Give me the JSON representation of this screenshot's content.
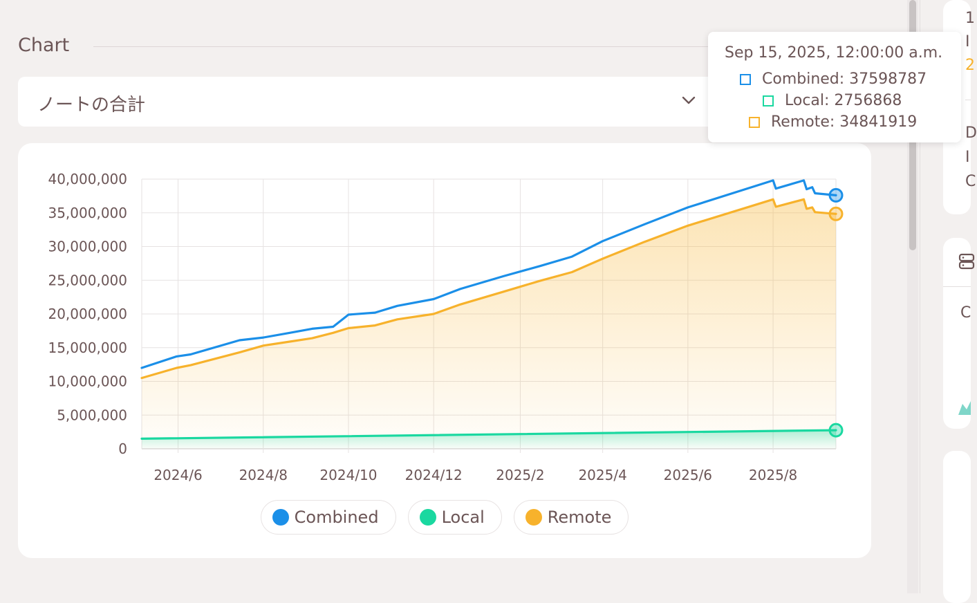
{
  "section": {
    "title": "Chart"
  },
  "select": {
    "value": "ノートの合計"
  },
  "tooltip": {
    "title": "Sep 15, 2025, 12:00:00 a.m.",
    "items": [
      {
        "label": "Combined: 37598787",
        "color": "#1b8fe8"
      },
      {
        "label": "Local: 2756868",
        "color": "#1ad8a0"
      },
      {
        "label": "Remote: 34841919",
        "color": "#f7b22c"
      }
    ]
  },
  "right_panel": {
    "glyphs": [
      "1",
      "I",
      "2",
      "D",
      "I",
      "C",
      "C"
    ]
  },
  "chart_data": {
    "type": "line",
    "x_start": "2024-05-06",
    "x_end": "2025-09-15",
    "x_ticks": [
      {
        "label": "2024/6",
        "date": "2024-06-01"
      },
      {
        "label": "2024/8",
        "date": "2024-08-01"
      },
      {
        "label": "2024/10",
        "date": "2024-10-01"
      },
      {
        "label": "2024/12",
        "date": "2024-12-01"
      },
      {
        "label": "2025/2",
        "date": "2025-02-01"
      },
      {
        "label": "2025/4",
        "date": "2025-04-01"
      },
      {
        "label": "2025/6",
        "date": "2025-06-01"
      },
      {
        "label": "2025/8",
        "date": "2025-08-01"
      }
    ],
    "ylim": [
      0,
      40000000
    ],
    "y_ticks": [
      {
        "value": 40000000,
        "label": "40,000,000"
      },
      {
        "value": 35000000,
        "label": "35,000,000"
      },
      {
        "value": 30000000,
        "label": "30,000,000"
      },
      {
        "value": 25000000,
        "label": "25,000,000"
      },
      {
        "value": 20000000,
        "label": "20,000,000"
      },
      {
        "value": 15000000,
        "label": "15,000,000"
      },
      {
        "value": 10000000,
        "label": "10,000,000"
      },
      {
        "value": 5000000,
        "label": "5,000,000"
      },
      {
        "value": 0,
        "label": "0"
      }
    ],
    "grid": true,
    "legend_position": "bottom",
    "series": [
      {
        "name": "Combined",
        "color": "#1b8fe8",
        "fill": false,
        "points": [
          [
            "2024-05-06",
            12000000
          ],
          [
            "2024-05-31",
            13700000
          ],
          [
            "2024-06-10",
            14000000
          ],
          [
            "2024-07-15",
            16100000
          ],
          [
            "2024-08-01",
            16500000
          ],
          [
            "2024-08-20",
            17200000
          ],
          [
            "2024-09-05",
            17800000
          ],
          [
            "2024-09-20",
            18100000
          ],
          [
            "2024-10-01",
            19900000
          ],
          [
            "2024-10-20",
            20200000
          ],
          [
            "2024-11-05",
            21200000
          ],
          [
            "2024-12-01",
            22200000
          ],
          [
            "2024-12-20",
            23700000
          ],
          [
            "2025-01-20",
            25600000
          ],
          [
            "2025-02-15",
            27100000
          ],
          [
            "2025-03-10",
            28500000
          ],
          [
            "2025-04-01",
            30800000
          ],
          [
            "2025-05-01",
            33300000
          ],
          [
            "2025-06-01",
            35800000
          ],
          [
            "2025-08-01",
            39800000
          ],
          [
            "2025-08-03",
            38600000
          ],
          [
            "2025-08-23",
            39800000
          ],
          [
            "2025-08-25",
            38500000
          ],
          [
            "2025-08-29",
            38800000
          ],
          [
            "2025-08-31",
            37900000
          ],
          [
            "2025-09-15",
            37598787
          ]
        ]
      },
      {
        "name": "Local",
        "color": "#1ad8a0",
        "fill": true,
        "points": [
          [
            "2024-05-06",
            1500000
          ],
          [
            "2025-09-15",
            2756868
          ]
        ]
      },
      {
        "name": "Remote",
        "color": "#f7b22c",
        "fill": true,
        "points": [
          [
            "2024-05-06",
            10500000
          ],
          [
            "2024-05-31",
            12000000
          ],
          [
            "2024-06-10",
            12400000
          ],
          [
            "2024-07-15",
            14300000
          ],
          [
            "2024-08-01",
            15300000
          ],
          [
            "2024-08-20",
            15900000
          ],
          [
            "2024-09-05",
            16400000
          ],
          [
            "2024-09-20",
            17200000
          ],
          [
            "2024-10-01",
            17900000
          ],
          [
            "2024-10-20",
            18300000
          ],
          [
            "2024-11-05",
            19200000
          ],
          [
            "2024-12-01",
            20000000
          ],
          [
            "2024-12-20",
            21400000
          ],
          [
            "2025-01-20",
            23300000
          ],
          [
            "2025-02-15",
            24900000
          ],
          [
            "2025-03-10",
            26200000
          ],
          [
            "2025-04-01",
            28200000
          ],
          [
            "2025-05-01",
            30700000
          ],
          [
            "2025-06-01",
            33100000
          ],
          [
            "2025-08-01",
            37000000
          ],
          [
            "2025-08-03",
            35900000
          ],
          [
            "2025-08-23",
            37000000
          ],
          [
            "2025-08-25",
            35600000
          ],
          [
            "2025-08-29",
            35800000
          ],
          [
            "2025-08-31",
            35100000
          ],
          [
            "2025-09-15",
            34841919
          ]
        ]
      }
    ]
  }
}
